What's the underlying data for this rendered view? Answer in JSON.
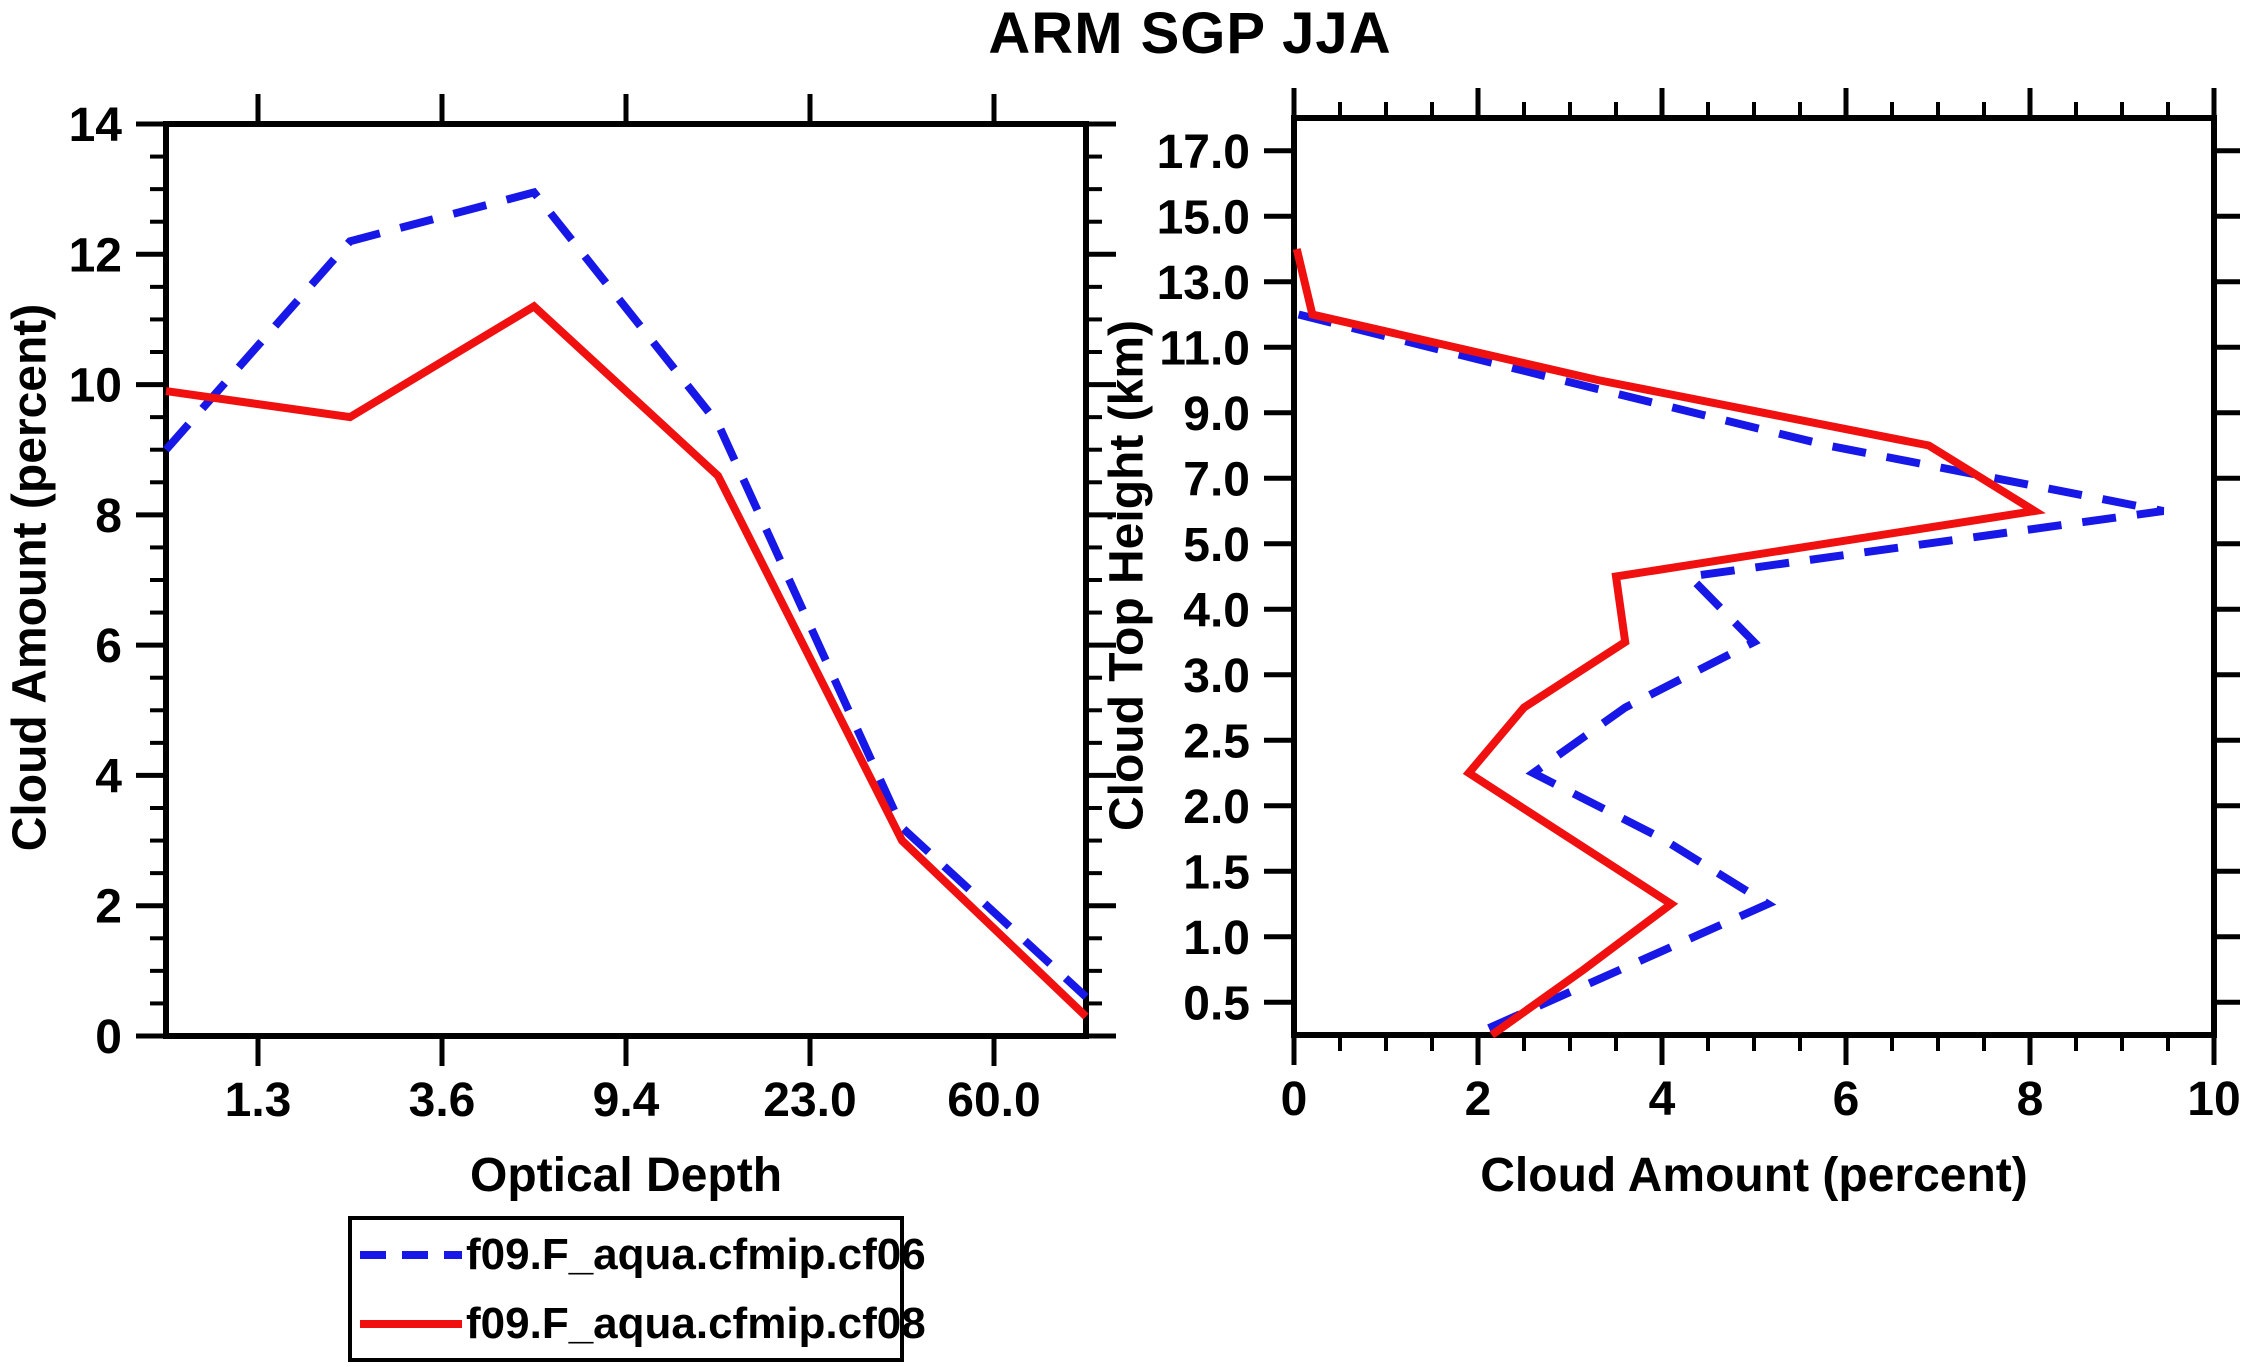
{
  "title": "ARM SGP JJA",
  "colors": {
    "blue": "#1717e8",
    "red": "#f01010",
    "axis": "#000000",
    "background": "#ffffff"
  },
  "legend": {
    "items": [
      {
        "label": "f09.F_aqua.cfmip.cf06",
        "color_key": "blue",
        "style": "dashed"
      },
      {
        "label": "f09.F_aqua.cfmip.cf08",
        "color_key": "red",
        "style": "solid"
      }
    ]
  },
  "chart_data": [
    {
      "type": "line",
      "panel": "left",
      "xlabel": "Optical Depth",
      "ylabel": "Cloud Amount (percent)",
      "x_axis": {
        "kind": "category-bins",
        "num_points": 6,
        "bin_boundary_labels": [
          "1.3",
          "3.6",
          "9.4",
          "23.0",
          "60.0"
        ]
      },
      "y_axis": {
        "min": 0,
        "max": 14,
        "major_tick_step": 2,
        "minor_tick_step": 0.5,
        "tick_labels": [
          "0",
          "2",
          "4",
          "6",
          "8",
          "10",
          "12",
          "14"
        ]
      },
      "series": [
        {
          "name": "f09.F_aqua.cfmip.cf06",
          "color_key": "blue",
          "style": "dashed",
          "values": [
            9.0,
            12.2,
            12.95,
            9.4,
            3.2,
            0.6
          ]
        },
        {
          "name": "f09.F_aqua.cfmip.cf08",
          "color_key": "red",
          "style": "solid",
          "values": [
            9.9,
            9.5,
            11.2,
            8.6,
            3.0,
            0.3
          ]
        }
      ]
    },
    {
      "type": "line",
      "panel": "right",
      "xlabel": "Cloud Amount (percent)",
      "ylabel": "Cloud Top Height (km)",
      "x_axis": {
        "min": 0,
        "max": 10,
        "major_tick_step": 2,
        "minor_tick_step": 0.5,
        "tick_labels": [
          "0",
          "2",
          "4",
          "6",
          "8",
          "10"
        ]
      },
      "y_axis": {
        "kind": "category-bins",
        "bin_boundary_labels": [
          "17.0",
          "15.0",
          "13.0",
          "11.0",
          "9.0",
          "7.0",
          "5.0",
          "4.0",
          "3.0",
          "2.5",
          "2.0",
          "1.5",
          "1.0",
          "0.5"
        ],
        "bin_center_ladder_km": [
          16,
          14,
          12,
          10,
          8,
          6,
          4.5,
          3.5,
          2.75,
          2.25,
          1.75,
          1.25,
          0.75,
          0.25
        ]
      },
      "series": [
        {
          "name": "f09.F_aqua.cfmip.cf06",
          "color_key": "blue",
          "style": "dashed",
          "points": [
            {
              "h": 12,
              "v": 0.05
            },
            {
              "h": 10,
              "v": 2.9
            },
            {
              "h": 8,
              "v": 5.8
            },
            {
              "h": 6,
              "v": 9.45
            },
            {
              "h": 4.5,
              "v": 4.3
            },
            {
              "h": 3.5,
              "v": 5.0
            },
            {
              "h": 2.75,
              "v": 3.6
            },
            {
              "h": 2.25,
              "v": 2.6
            },
            {
              "h": 1.75,
              "v": 4.0
            },
            {
              "h": 1.25,
              "v": 5.15
            },
            {
              "h": 0.75,
              "v": 3.55
            },
            {
              "h": 0.25,
              "v": 1.95
            }
          ]
        },
        {
          "name": "f09.F_aqua.cfmip.cf08",
          "color_key": "red",
          "style": "solid",
          "points": [
            {
              "h": 14,
              "v": 0.03
            },
            {
              "h": 12,
              "v": 0.2
            },
            {
              "h": 10,
              "v": 3.3
            },
            {
              "h": 8,
              "v": 6.9
            },
            {
              "h": 6,
              "v": 8.05
            },
            {
              "h": 4.5,
              "v": 3.5
            },
            {
              "h": 3.5,
              "v": 3.6
            },
            {
              "h": 2.75,
              "v": 2.5
            },
            {
              "h": 2.25,
              "v": 1.9
            },
            {
              "h": 1.75,
              "v": 3.0
            },
            {
              "h": 1.25,
              "v": 4.1
            },
            {
              "h": 0.75,
              "v": 3.15
            },
            {
              "h": 0.25,
              "v": 2.15
            }
          ]
        }
      ]
    }
  ]
}
